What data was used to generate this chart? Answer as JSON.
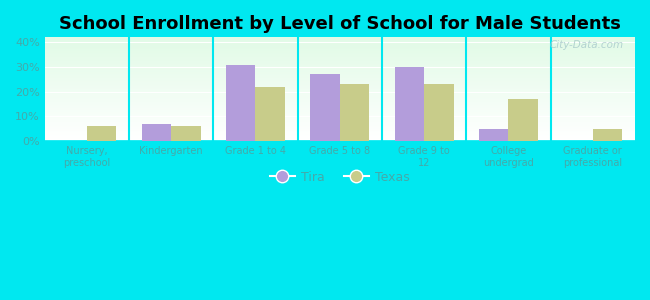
{
  "title": "School Enrollment by Level of School for Male Students",
  "categories": [
    "Nursery,\npreschool",
    "Kindergarten",
    "Grade 1 to 4",
    "Grade 5 to 8",
    "Grade 9 to\n12",
    "College\nundergrad",
    "Graduate or\nprofessional"
  ],
  "tira_values": [
    0,
    7,
    31,
    27,
    30,
    5,
    0
  ],
  "texas_values": [
    6,
    6,
    22,
    23,
    23,
    17,
    5
  ],
  "tira_color": "#b39ddb",
  "texas_color": "#c8cc8a",
  "background_color": "#00e8f0",
  "ylim": [
    0,
    42
  ],
  "yticks": [
    0,
    10,
    20,
    30,
    40
  ],
  "ytick_labels": [
    "0%",
    "10%",
    "20%",
    "30%",
    "40%"
  ],
  "legend_labels": [
    "Tira",
    "Texas"
  ],
  "bar_width": 0.35,
  "title_fontsize": 13,
  "tick_label_color": "#44aaaa",
  "watermark_text": "City-Data.com"
}
